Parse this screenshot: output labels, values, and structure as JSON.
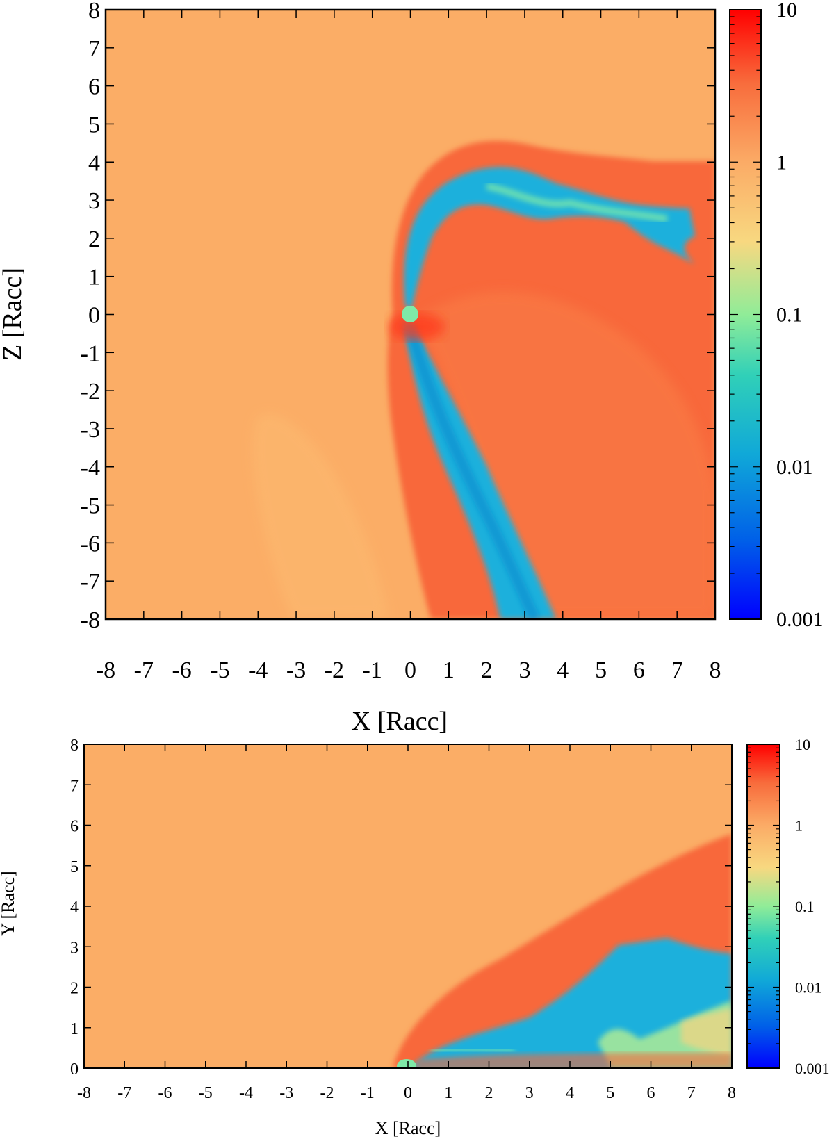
{
  "chart_data": [
    {
      "type": "heatmap",
      "panel": "top",
      "xlabel": "X [Racc]",
      "ylabel": "Z [Racc]",
      "xlim": [
        -8,
        8
      ],
      "ylim": [
        -8,
        8
      ],
      "x_ticks": [
        "-8",
        "-7",
        "-6",
        "-5",
        "-4",
        "-3",
        "-2",
        "-1",
        "0",
        "1",
        "2",
        "3",
        "4",
        "5",
        "6",
        "7",
        "8"
      ],
      "y_ticks": [
        "8",
        "7",
        "6",
        "5",
        "4",
        "3",
        "2",
        "1",
        "0",
        "-1",
        "-2",
        "-3",
        "-4",
        "-5",
        "-6",
        "-7",
        "-8"
      ],
      "colorbar": {
        "scale": "log",
        "range": [
          0.001,
          10
        ],
        "ticks": [
          "10",
          "1",
          "0.1",
          "0.01",
          "0.001"
        ]
      },
      "colors": {
        "background": "#fbad66",
        "shock": "#f8683a",
        "tail": "#1ab0dc",
        "core": "#7feaa8",
        "max": "#ff0000",
        "min": "#0000ff"
      }
    },
    {
      "type": "heatmap",
      "panel": "bottom",
      "xlabel": "X [Racc]",
      "ylabel": "Y [Racc]",
      "xlim": [
        -8,
        8
      ],
      "ylim": [
        0,
        8
      ],
      "x_ticks": [
        "-8",
        "-7",
        "-6",
        "-5",
        "-4",
        "-3",
        "-2",
        "-1",
        "0",
        "1",
        "2",
        "3",
        "4",
        "5",
        "6",
        "7",
        "8"
      ],
      "y_ticks": [
        "8",
        "7",
        "6",
        "5",
        "4",
        "3",
        "2",
        "1",
        "0"
      ],
      "colorbar": {
        "scale": "log",
        "range": [
          0.001,
          10
        ],
        "ticks": [
          "10",
          "1",
          "0.1",
          "0.01",
          "0.001"
        ]
      },
      "colors": {
        "background": "#fbad66",
        "shock": "#f8683a",
        "tail": "#1ab0dc",
        "core": "#7feaa8",
        "max": "#ff0000",
        "min": "#0000ff"
      }
    }
  ]
}
